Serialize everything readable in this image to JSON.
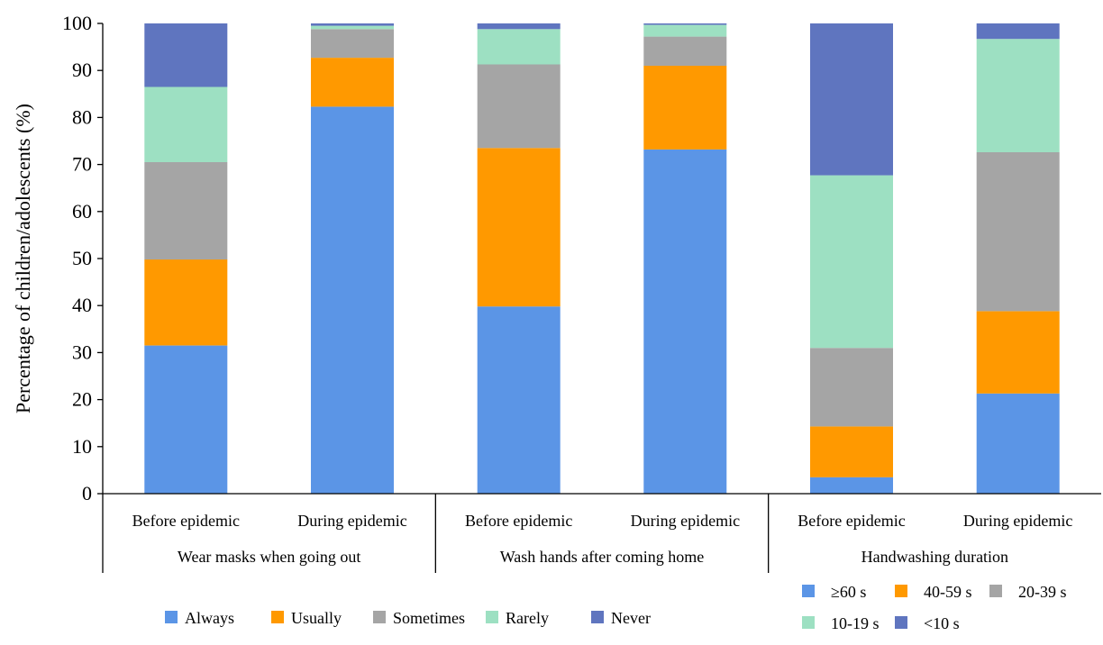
{
  "chart_data": {
    "type": "bar",
    "stacked": true,
    "ylabel": "Percentage of children/adolescents (%)",
    "ylim": [
      0,
      100
    ],
    "yticks": [
      0,
      10,
      20,
      30,
      40,
      50,
      60,
      70,
      80,
      90,
      100
    ],
    "grid": false,
    "categories": [
      "Before epidemic",
      "During epidemic",
      "Before epidemic",
      "During epidemic",
      "Before epidemic",
      "During epidemic"
    ],
    "groups": [
      {
        "label": "Wear masks when going out",
        "categories": [
          0,
          1
        ]
      },
      {
        "label": "Wash hands after coming home",
        "categories": [
          2,
          3
        ]
      },
      {
        "label": "Handwashing duration",
        "categories": [
          4,
          5
        ]
      }
    ],
    "legends": [
      {
        "placement": "bottom-center",
        "applies_to_groups": [
          0,
          1
        ],
        "entries": [
          "Always",
          "Usually",
          "Sometimes",
          "Rarely",
          "Never"
        ]
      },
      {
        "placement": "bottom-right",
        "applies_to_groups": [
          2
        ],
        "entries": [
          "≥60 s",
          "40-59 s",
          "20-39 s",
          "10-19 s",
          "<10 s"
        ]
      }
    ],
    "colors": [
      "#5b95e6",
      "#ff9900",
      "#a5a5a5",
      "#9de0c2",
      "#5f75bf"
    ],
    "series": [
      {
        "name": "Always / ≥60 s",
        "values": [
          31.5,
          82.3,
          39.8,
          73.2,
          3.5,
          21.3
        ]
      },
      {
        "name": "Usually / 40-59 s",
        "values": [
          18.3,
          10.4,
          33.7,
          17.8,
          10.8,
          17.5
        ]
      },
      {
        "name": "Sometimes / 20-39 s",
        "values": [
          20.7,
          6.1,
          17.8,
          6.2,
          16.7,
          33.8
        ]
      },
      {
        "name": "Rarely / 10-19 s",
        "values": [
          16.0,
          0.7,
          7.5,
          2.5,
          36.7,
          24.1
        ]
      },
      {
        "name": "Never / <10 s",
        "values": [
          13.5,
          0.5,
          1.2,
          0.3,
          32.3,
          3.3
        ]
      }
    ]
  }
}
